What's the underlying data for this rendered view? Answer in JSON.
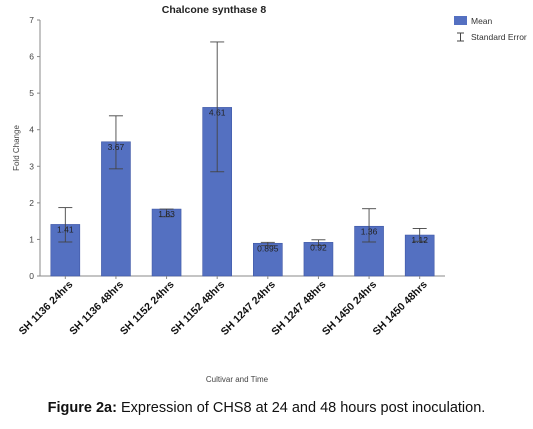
{
  "chart_data": {
    "type": "bar",
    "title": "Chalcone synthase 8",
    "xlabel": "Cultivar and Time",
    "ylabel": "Fold Change",
    "ylim": [
      0,
      7
    ],
    "yticks": [
      "0",
      "1",
      "2",
      "3",
      "4",
      "5",
      "6",
      "7"
    ],
    "categories": [
      "SH 1136 24hrs",
      "SH 1136 48hrs",
      "SH 1152 24hrs",
      "SH 1152 48hrs",
      "SH 1247 24hrs",
      "SH 1247 48hrs",
      "SH 1450 24hrs",
      "SH 1450 48hrs"
    ],
    "series": [
      {
        "name": "Mean",
        "values": [
          1.41,
          3.67,
          1.83,
          4.61,
          0.895,
          0.92,
          1.36,
          1.12
        ],
        "value_labels": [
          "1.41",
          "3.67",
          "1.83",
          "4.61",
          "0.895",
          "0.92",
          "1.36",
          "1.12"
        ],
        "error_low": [
          0.93,
          2.93,
          1.62,
          2.85,
          0.83,
          0.84,
          0.93,
          0.95
        ],
        "error_high": [
          1.87,
          4.38,
          1.83,
          6.4,
          0.92,
          0.99,
          1.84,
          1.3
        ]
      }
    ],
    "legend": {
      "placement": "top-right",
      "entries": [
        "Mean",
        "Standard Error"
      ]
    },
    "grid": false,
    "colors": {
      "bar": "#5470c1",
      "bar_edge": "#3e57a5",
      "error": "#444444",
      "axis": "#888888"
    }
  },
  "caption": {
    "label": "Figure 2a:",
    "text": " Expression of CHS8 at 24 and 48 hours post inoculation."
  }
}
